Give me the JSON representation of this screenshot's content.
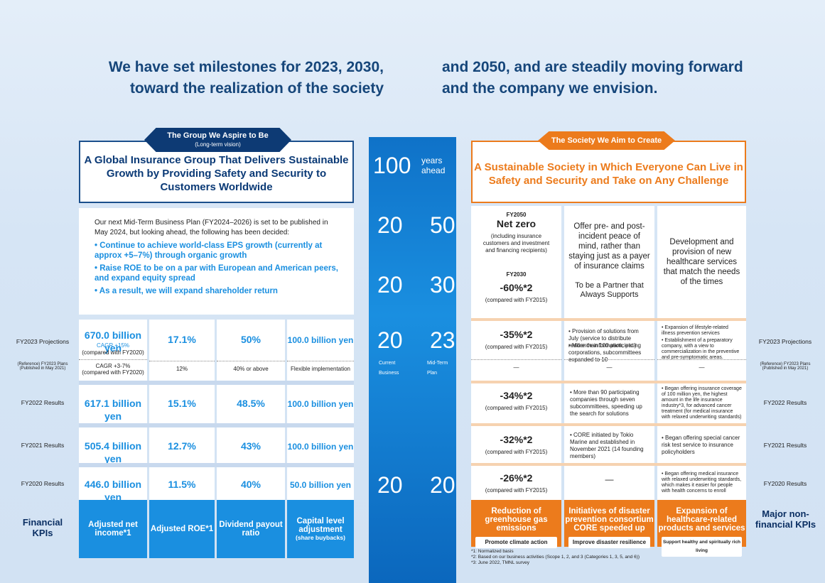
{
  "headline": {
    "left1": "We have set milestones for 2023, 2030,",
    "left2": "toward the realization of the society",
    "right1": "and 2050, and are steadily moving forward",
    "right2": "and the company we envision."
  },
  "left_tag": {
    "title": "The Group We Aspire to Be",
    "sub": "(Long-term vision)"
  },
  "left_title": "A Global Insurance Group That Delivers Sustainable Growth by Providing Safety and Security to Customers Worldwide",
  "right_tag": "The Society We Aim to Create",
  "right_title": "A Sustainable Society in Which Everyone Can Live in Safety and Security and Take on Any Challenge",
  "plan": {
    "intro": "Our next Mid-Term Business Plan (FY2024–2026) is set to be published in May 2024, but looking ahead, the following has been decided:",
    "b1": "• Continue to achieve world-class EPS growth (currently at approx +5–7%) through organic growth",
    "b2": "• Raise ROE to be on a par with European and American peers, and expand equity spread",
    "b3": "• As a result, we will expand shareholder return"
  },
  "row_labels": {
    "fy2023": "FY2023 Projections",
    "ref": "(Reference) FY2023 Plans (Published in May 2021)",
    "fy2022": "FY2022 Results",
    "fy2021": "FY2021 Results",
    "fy2020": "FY2020 Results"
  },
  "col1": {
    "proj": "670.0 billion yen",
    "proj_sub": "CAGR +15%",
    "proj_sub2": "(compared with FY2020)",
    "plan": "CAGR +3-7%",
    "plan2": "(compared with FY2020)",
    "r22": "617.1 billion yen",
    "r21": "505.4 billion yen",
    "r20": "446.0 billion yen",
    "kpi": "Adjusted net income*1"
  },
  "col2": {
    "proj": "17.1%",
    "plan": "12%",
    "r22": "15.1%",
    "r21": "12.7%",
    "r20": "11.5%",
    "kpi": "Adjusted ROE*1"
  },
  "col3": {
    "proj": "50%",
    "plan": "40% or above",
    "r22": "48.5%",
    "r21": "43%",
    "r20": "40%",
    "kpi": "Dividend payout ratio"
  },
  "col4": {
    "proj": "100.0 billion yen",
    "plan": "Flexible implementation",
    "r22": "100.0 billion yen",
    "r21": "100.0 billion yen",
    "r20": "50.0 billion yen",
    "kpi": "Capital level adjustment",
    "kpi_sub": "(share buybacks)"
  },
  "financial_kpis": "Financial KPIs",
  "nonfinancial_kpis": "Major non-financial KPIs",
  "center": {
    "y100": "100",
    "y100t": "years ahead",
    "y2050a": "20",
    "y2050b": "50",
    "y2030a": "20",
    "y2030b": "30",
    "y2023a": "20",
    "y2023b": "23",
    "current": "Current Business",
    "midterm": "Mid-Term Plan",
    "y2020a": "20",
    "y2020b": "20"
  },
  "r1": {
    "fy2050": "FY2050",
    "net": "Net zero",
    "net_sub": "(including insurance customers and investment and financing recipients)",
    "fy2030": "FY2030",
    "v2030": "-60%*2",
    "c2030": "(compared with FY2015)",
    "v23": "-35%*2",
    "c23": "(compared with FY2015)",
    "plan": "—",
    "v22": "-34%*2",
    "c22": "(compared with FY2015)",
    "v21": "-32%*2",
    "c21": "(compared with FY2015)",
    "v20": "-26%*2",
    "c20": "(compared with FY2015)",
    "kpi": "Reduction of greenhouse gas emissions",
    "pill": "Promote climate action"
  },
  "r2": {
    "big": "Offer pre- and post-incident peace of mind, rather than staying just as a payer of insurance claims",
    "partner": "To be a Partner that Always Supports",
    "p23a": "• Provision of solutions from July (service to distribute resilience information, etc.)",
    "p23b": "• More than 100 participating corporations, subcommittees expanded to 10",
    "plan": "—",
    "r22": "• More than 90 participating companies through seven subcommittees, speeding up the search for solutions",
    "r21": "• CORE initiated by Tokio Marine and established in November 2021 (14 founding members)",
    "r20": "—",
    "kpi": "Initiatives of disaster prevention consortium CORE speeded up",
    "pill": "Improve disaster resilience"
  },
  "r3": {
    "big": "Development and provision of new healthcare services that match the needs of the times",
    "p23a": "• Expansion of lifestyle-related illness prevention services",
    "p23b": "• Establishment of a preparatory company, with a view to commercialization in the preventive and pre-symptomatic areas.",
    "plan": "—",
    "r22": "• Began offering insurance coverage of 100 million yen, the highest amount in the life insurance industry*3, for advanced cancer treatment (for medical insurance with relaxed underwriting standards)",
    "r21": "• Began offering special cancer risk test service to insurance policyholders",
    "r20": "• Began offering medical insurance with relaxed underwriting standards, which makes it easier for people with health concerns to enroll",
    "kpi": "Expansion of healthcare-related products and services",
    "pill": "Support healthy and spiritually rich living"
  },
  "footnotes": {
    "f1": "*1: Normalized basis",
    "f2": "*2: Based on our business activities (Scope 1, 2, and 3 (Categories 1, 3, 5, and 6))",
    "f3": "*3: June 2022, TMNL survey"
  }
}
